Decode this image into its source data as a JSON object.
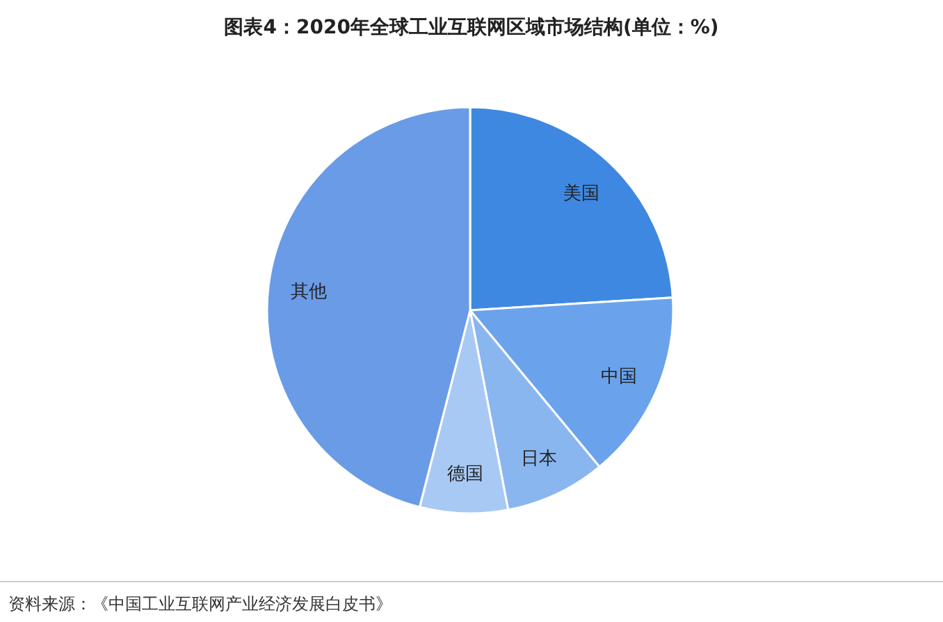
{
  "chart_data": {
    "type": "pie",
    "title": "图表4：2020年全球工业互联网区域市场结构(单位：%)",
    "categories": [
      "美国",
      "中国",
      "日本",
      "德国",
      "其他"
    ],
    "values": [
      24,
      15,
      8,
      7,
      46
    ],
    "colors": [
      "#3f88e2",
      "#6aa3ec",
      "#8ab6f0",
      "#a9c9f5",
      "#6a9be6"
    ],
    "annotations": [
      "资料来源：《中国工业互联网产业经济发展白皮书》"
    ]
  }
}
